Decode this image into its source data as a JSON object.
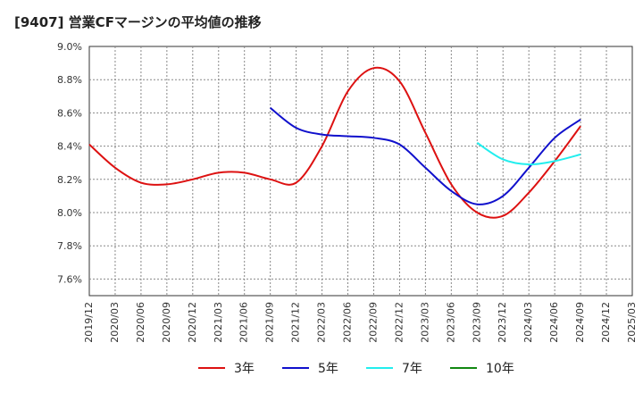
{
  "title": "[9407]  営業CFマージンの平均値の推移",
  "chart_data": {
    "type": "line",
    "title": "[9407]  営業CFマージンの平均値の推移",
    "xlabel": "",
    "ylabel": "",
    "x_ticks": [
      "2019/12",
      "2020/03",
      "2020/06",
      "2020/09",
      "2020/12",
      "2021/03",
      "2021/06",
      "2021/09",
      "2021/12",
      "2022/03",
      "2022/06",
      "2022/09",
      "2022/12",
      "2023/03",
      "2023/06",
      "2023/09",
      "2023/12",
      "2024/03",
      "2024/06",
      "2024/09",
      "2024/12",
      "2025/03"
    ],
    "y_ticks": [
      "7.6%",
      "7.8%",
      "8.0%",
      "8.2%",
      "8.4%",
      "8.6%",
      "8.8%",
      "9.0%"
    ],
    "ylim": [
      7.5,
      9.0
    ],
    "grid": true,
    "legend_position": "bottom",
    "series": [
      {
        "name": "3年",
        "color": "#dd1111",
        "x": [
          "2019/12",
          "2020/03",
          "2020/06",
          "2020/09",
          "2020/12",
          "2021/03",
          "2021/06",
          "2021/09",
          "2021/12",
          "2022/03",
          "2022/06",
          "2022/09",
          "2022/12",
          "2023/03",
          "2023/06",
          "2023/09",
          "2023/12",
          "2024/03",
          "2024/06",
          "2024/09"
        ],
        "values": [
          8.41,
          8.27,
          8.18,
          8.17,
          8.2,
          8.24,
          8.24,
          8.2,
          8.18,
          8.4,
          8.73,
          8.87,
          8.79,
          8.48,
          8.17,
          8.0,
          7.98,
          8.12,
          8.31,
          8.52
        ]
      },
      {
        "name": "5年",
        "color": "#1010cc",
        "x": [
          "2021/09",
          "2021/12",
          "2022/03",
          "2022/06",
          "2022/09",
          "2022/12",
          "2023/03",
          "2023/06",
          "2023/09",
          "2023/12",
          "2024/03",
          "2024/06",
          "2024/09"
        ],
        "values": [
          8.63,
          8.51,
          8.47,
          8.46,
          8.45,
          8.41,
          8.27,
          8.13,
          8.05,
          8.1,
          8.27,
          8.45,
          8.56
        ]
      },
      {
        "name": "7年",
        "color": "#22eeee",
        "x": [
          "2023/09",
          "2023/12",
          "2024/03",
          "2024/06",
          "2024/09"
        ],
        "values": [
          8.42,
          8.32,
          8.29,
          8.31,
          8.35
        ]
      },
      {
        "name": "10年",
        "color": "#118811",
        "x": [],
        "values": []
      }
    ]
  }
}
